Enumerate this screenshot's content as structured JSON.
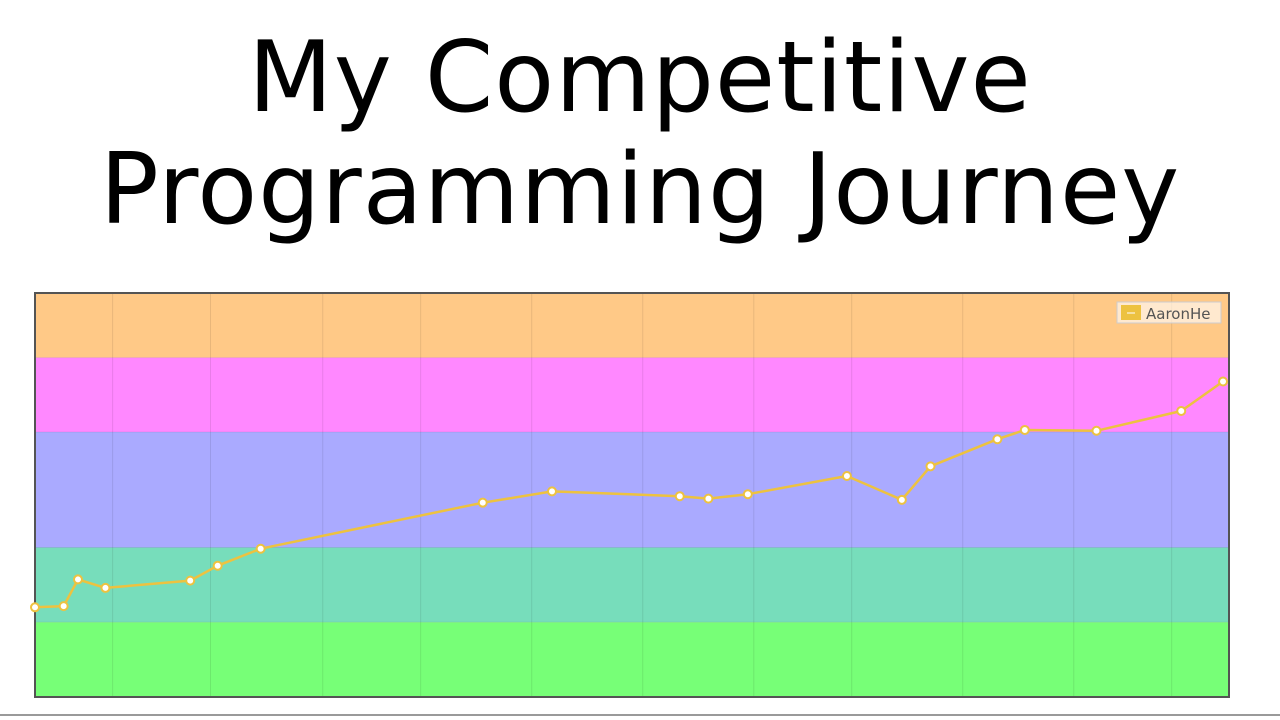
{
  "title": {
    "line1": "My Competitive",
    "line2": "Programming Journey"
  },
  "chart_data": {
    "type": "line",
    "title": "",
    "xlabel": "",
    "ylabel": "",
    "xlim": [
      0,
      1
    ],
    "ylim": [
      0,
      1
    ],
    "grid": true,
    "legend_placement": "top-right",
    "series": [
      {
        "name": "AaronHe",
        "color": "#edc240",
        "x": [
          0.0,
          0.024,
          0.036,
          0.059,
          0.13,
          0.153,
          0.189,
          0.375,
          0.433,
          0.54,
          0.564,
          0.597,
          0.68,
          0.726,
          0.75,
          0.806,
          0.829,
          0.889,
          0.96,
          0.995
        ],
        "y": [
          0.222,
          0.225,
          0.291,
          0.27,
          0.288,
          0.325,
          0.367,
          0.481,
          0.509,
          0.497,
          0.491,
          0.502,
          0.547,
          0.488,
          0.571,
          0.638,
          0.661,
          0.659,
          0.708,
          0.781
        ]
      }
    ],
    "bands": [
      {
        "from": 0.84,
        "to": 1.0,
        "color": "#ffc987"
      },
      {
        "from": 0.656,
        "to": 0.84,
        "color": "#ff88ff"
      },
      {
        "from": 0.37,
        "to": 0.656,
        "color": "#aaaaff"
      },
      {
        "from": 0.185,
        "to": 0.37,
        "color": "#77ddbb"
      },
      {
        "from": 0.0,
        "to": 0.185,
        "color": "#77ff77"
      }
    ],
    "vertical_gridlines": [
      0.065,
      0.147,
      0.241,
      0.323,
      0.416,
      0.509,
      0.602,
      0.684,
      0.777,
      0.87,
      0.952
    ]
  }
}
